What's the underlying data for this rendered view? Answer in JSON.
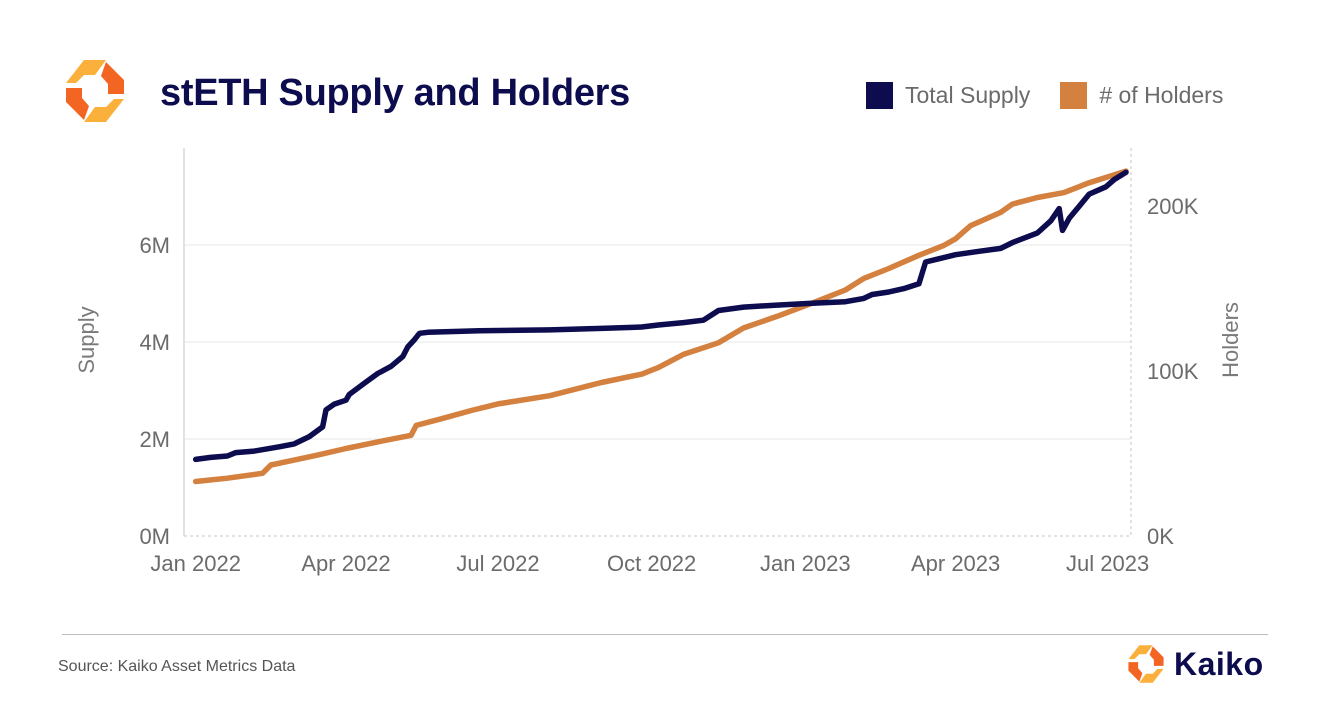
{
  "header": {
    "title": "stETH Supply and Holders"
  },
  "legend": {
    "items": [
      {
        "label": "Total Supply",
        "color": "#0c0c4e"
      },
      {
        "label": "# of Holders",
        "color": "#d4803f"
      }
    ]
  },
  "footer": {
    "source": "Source: Kaiko Asset Metrics Data",
    "brand": "Kaiko"
  },
  "colors": {
    "supply": "#0c0c4e",
    "holders": "#d4803f",
    "logo_light": "#fbb03b",
    "logo_dark": "#f26522"
  },
  "chart_data": {
    "type": "line",
    "title": "stETH Supply and Holders",
    "x_axis": {
      "type": "date",
      "range": [
        "2021-12-25",
        "2023-07-15"
      ],
      "ticks": [
        {
          "date": "2022-01-01",
          "label": "Jan 2022"
        },
        {
          "date": "2022-04-01",
          "label": "Apr 2022"
        },
        {
          "date": "2022-07-01",
          "label": "Jul 2022"
        },
        {
          "date": "2022-10-01",
          "label": "Oct 2022"
        },
        {
          "date": "2023-01-01",
          "label": "Jan 2023"
        },
        {
          "date": "2023-04-01",
          "label": "Apr 2023"
        },
        {
          "date": "2023-07-01",
          "label": "Jul 2023"
        }
      ]
    },
    "y_left": {
      "label": "Supply",
      "range": [
        0,
        8000000
      ],
      "ticks": [
        {
          "value": 0,
          "label": "0M"
        },
        {
          "value": 2000000,
          "label": "2M"
        },
        {
          "value": 4000000,
          "label": "4M"
        },
        {
          "value": 6000000,
          "label": "6M"
        }
      ]
    },
    "y_right": {
      "label": "Holders",
      "range": [
        0,
        235000
      ],
      "ticks": [
        {
          "value": 0,
          "label": "0K"
        },
        {
          "value": 100000,
          "label": "100K"
        },
        {
          "value": 200000,
          "label": "200K"
        }
      ]
    },
    "grid": "horizontal",
    "legend_position": "top-right",
    "series": [
      {
        "name": "Total Supply",
        "axis": "left",
        "color": "#0c0c4e",
        "points": [
          [
            "2022-01-01",
            1580000
          ],
          [
            "2022-01-10",
            1620000
          ],
          [
            "2022-01-20",
            1650000
          ],
          [
            "2022-01-25",
            1720000
          ],
          [
            "2022-02-05",
            1750000
          ],
          [
            "2022-02-20",
            1840000
          ],
          [
            "2022-03-01",
            1900000
          ],
          [
            "2022-03-10",
            2050000
          ],
          [
            "2022-03-18",
            2250000
          ],
          [
            "2022-03-20",
            2600000
          ],
          [
            "2022-03-25",
            2720000
          ],
          [
            "2022-04-01",
            2800000
          ],
          [
            "2022-04-03",
            2920000
          ],
          [
            "2022-04-12",
            3150000
          ],
          [
            "2022-04-20",
            3350000
          ],
          [
            "2022-04-28",
            3500000
          ],
          [
            "2022-05-05",
            3700000
          ],
          [
            "2022-05-08",
            3900000
          ],
          [
            "2022-05-12",
            4050000
          ],
          [
            "2022-05-15",
            4180000
          ],
          [
            "2022-05-20",
            4200000
          ],
          [
            "2022-06-20",
            4230000
          ],
          [
            "2022-08-01",
            4250000
          ],
          [
            "2022-09-01",
            4280000
          ],
          [
            "2022-09-25",
            4310000
          ],
          [
            "2022-10-05",
            4350000
          ],
          [
            "2022-10-20",
            4400000
          ],
          [
            "2022-11-01",
            4450000
          ],
          [
            "2022-11-10",
            4650000
          ],
          [
            "2022-11-25",
            4720000
          ],
          [
            "2022-12-15",
            4760000
          ],
          [
            "2023-01-05",
            4800000
          ],
          [
            "2023-01-25",
            4830000
          ],
          [
            "2023-02-05",
            4900000
          ],
          [
            "2023-02-10",
            4980000
          ],
          [
            "2023-02-20",
            5030000
          ],
          [
            "2023-03-01",
            5100000
          ],
          [
            "2023-03-10",
            5200000
          ],
          [
            "2023-03-14",
            5650000
          ],
          [
            "2023-03-20",
            5700000
          ],
          [
            "2023-04-01",
            5800000
          ],
          [
            "2023-04-15",
            5870000
          ],
          [
            "2023-04-28",
            5930000
          ],
          [
            "2023-05-05",
            6050000
          ],
          [
            "2023-05-20",
            6250000
          ],
          [
            "2023-05-28",
            6500000
          ],
          [
            "2023-06-02",
            6750000
          ],
          [
            "2023-06-04",
            6300000
          ],
          [
            "2023-06-08",
            6550000
          ],
          [
            "2023-06-14",
            6800000
          ],
          [
            "2023-06-20",
            7050000
          ],
          [
            "2023-06-30",
            7200000
          ],
          [
            "2023-07-05",
            7350000
          ],
          [
            "2023-07-12",
            7500000
          ]
        ]
      },
      {
        "name": "# of Holders",
        "axis": "right",
        "color": "#d4803f",
        "points": [
          [
            "2022-01-01",
            33000
          ],
          [
            "2022-01-20",
            35000
          ],
          [
            "2022-02-10",
            38000
          ],
          [
            "2022-02-15",
            43000
          ],
          [
            "2022-03-01",
            46000
          ],
          [
            "2022-03-15",
            49000
          ],
          [
            "2022-04-01",
            53000
          ],
          [
            "2022-04-20",
            57000
          ],
          [
            "2022-05-10",
            61000
          ],
          [
            "2022-05-13",
            67000
          ],
          [
            "2022-05-28",
            71000
          ],
          [
            "2022-06-15",
            76000
          ],
          [
            "2022-07-01",
            80000
          ],
          [
            "2022-08-01",
            85000
          ],
          [
            "2022-09-01",
            93000
          ],
          [
            "2022-09-25",
            98000
          ],
          [
            "2022-10-05",
            102000
          ],
          [
            "2022-10-20",
            110000
          ],
          [
            "2022-11-10",
            117000
          ],
          [
            "2022-11-25",
            126000
          ],
          [
            "2022-12-15",
            133000
          ],
          [
            "2023-01-05",
            141000
          ],
          [
            "2023-01-25",
            149000
          ],
          [
            "2023-02-05",
            156000
          ],
          [
            "2023-02-20",
            162000
          ],
          [
            "2023-03-10",
            170000
          ],
          [
            "2023-03-25",
            176000
          ],
          [
            "2023-04-01",
            180000
          ],
          [
            "2023-04-10",
            188000
          ],
          [
            "2023-04-28",
            196000
          ],
          [
            "2023-05-05",
            201000
          ],
          [
            "2023-05-20",
            205000
          ],
          [
            "2023-06-05",
            208000
          ],
          [
            "2023-06-20",
            214000
          ],
          [
            "2023-07-12",
            221000
          ]
        ]
      }
    ]
  }
}
